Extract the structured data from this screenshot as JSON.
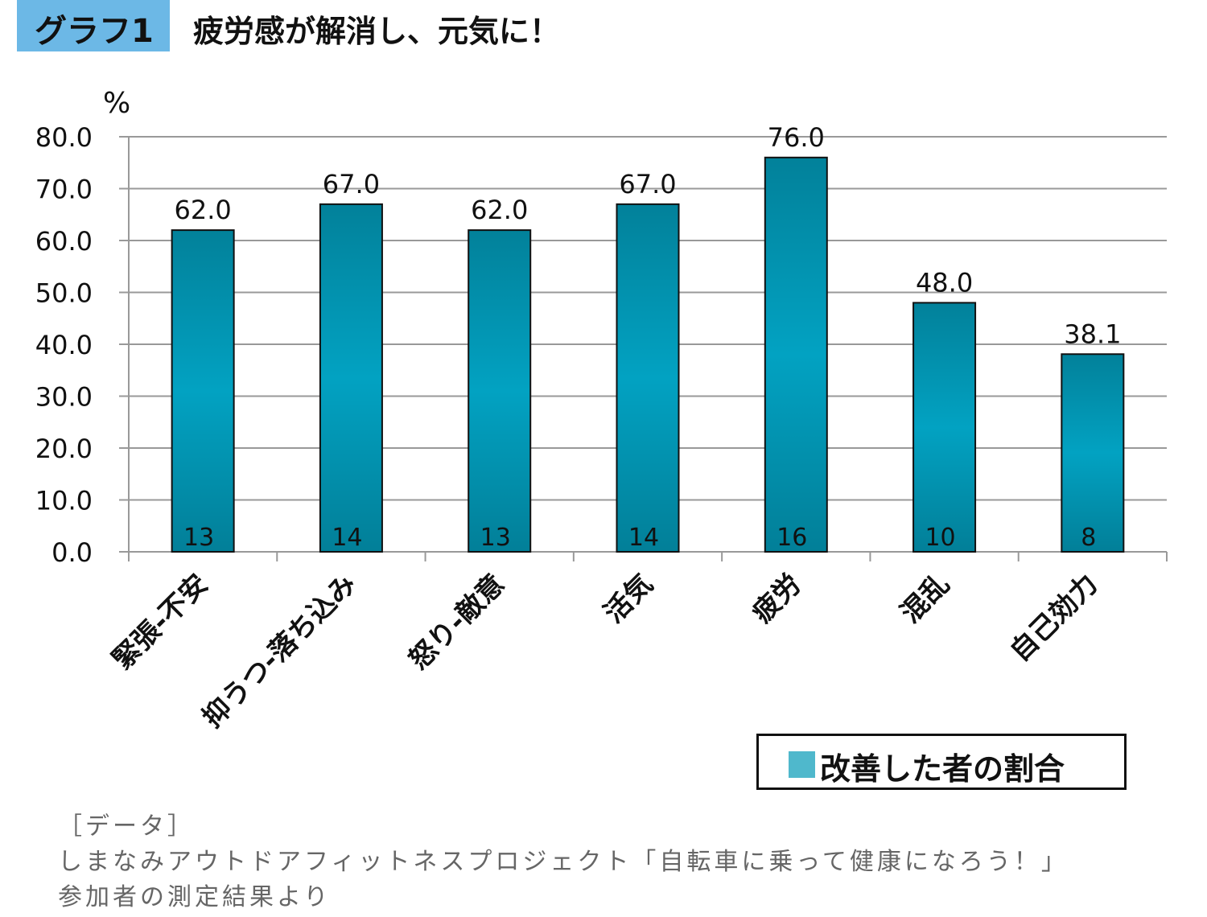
{
  "header": {
    "badge": "グラフ1",
    "title": "疲労感が解消し、元気に！"
  },
  "chart_data": {
    "type": "bar",
    "title": "疲労感が解消し、元気に！",
    "ylabel": "%",
    "xlabel": "",
    "ylim": [
      0,
      80
    ],
    "yticks": [
      "0.0",
      "10.0",
      "20.0",
      "30.0",
      "40.0",
      "50.0",
      "60.0",
      "70.0",
      "80.0"
    ],
    "grid": true,
    "legend_position": "bottom-right",
    "categories": [
      "緊張-不安",
      "抑うつ-落ち込み",
      "怒り-敵意",
      "活気",
      "疲労",
      "混乱",
      "自己効力"
    ],
    "series": [
      {
        "name": "改善した者の割合",
        "values": [
          62.0,
          67.0,
          62.0,
          67.0,
          76.0,
          48.0,
          38.1
        ],
        "color": "#0199bb"
      }
    ],
    "data_labels": [
      "62.0",
      "67.0",
      "62.0",
      "67.0",
      "76.0",
      "48.0",
      "38.1"
    ],
    "counts": [
      "13",
      "14",
      "13",
      "14",
      "16",
      "10",
      "8"
    ]
  },
  "legend": {
    "label": "改善した者の割合",
    "color": "#4fb8cc"
  },
  "note": {
    "line1": "［データ］",
    "line2": "しまなみアウトドアフィットネスプロジェクト「自転車に乗って健康になろう！」",
    "line3": "参加者の測定結果より"
  }
}
